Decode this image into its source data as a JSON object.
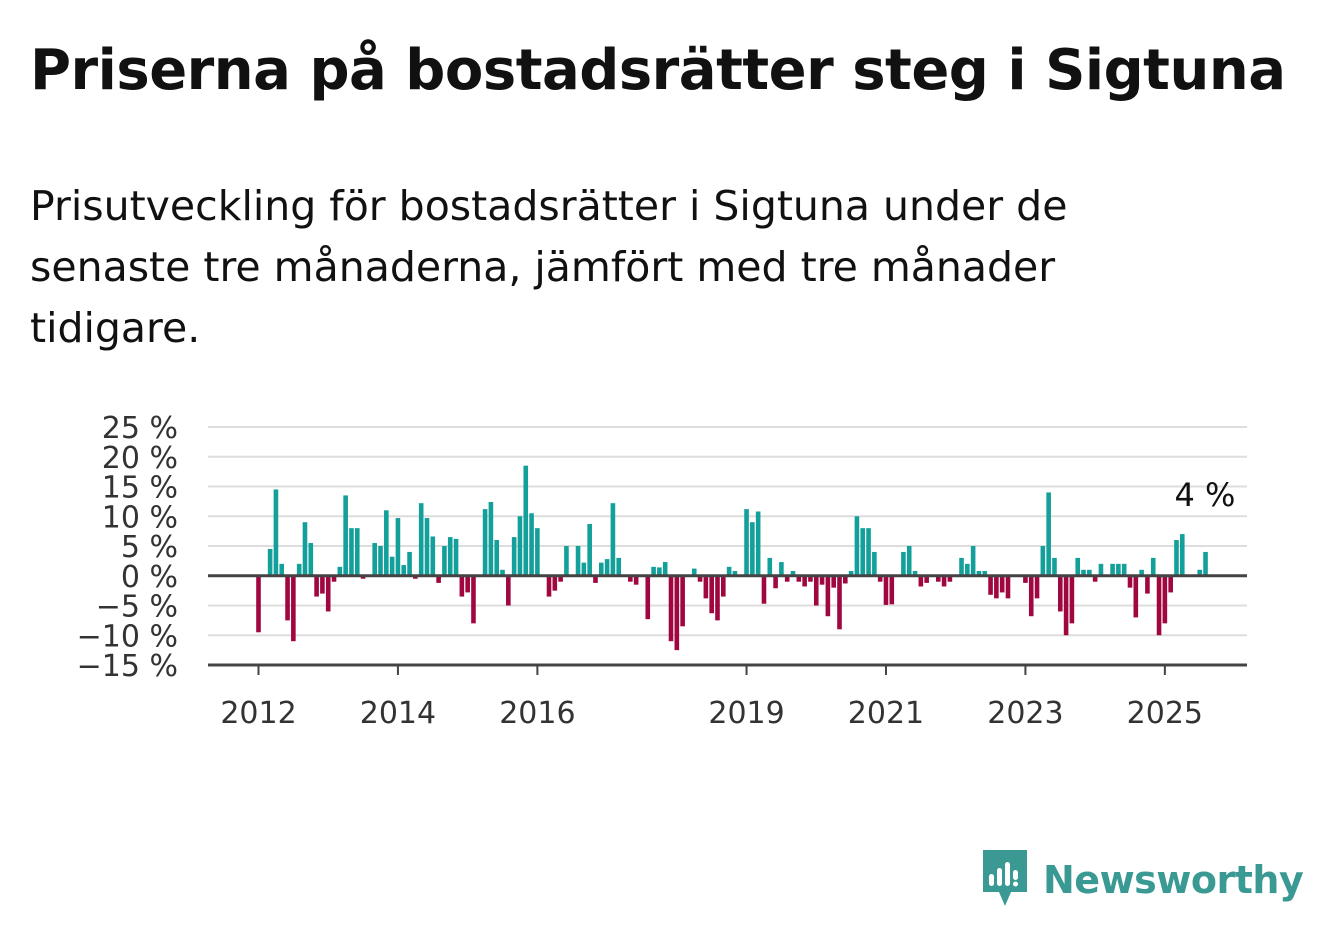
{
  "title": "Priserna på bostadsrätter steg i Sigtuna",
  "subtitle": "Prisutveckling för bostadsrätter i Sigtuna under de senaste tre månaderna, jämfört med tre månader tidigare.",
  "brand": {
    "name": "Newsworthy",
    "icon": "newsworthy-logo-icon",
    "color": "#3a9a93"
  },
  "colors": {
    "positive": "#13a09a",
    "negative": "#a0063f",
    "grid": "#dddddd",
    "axis": "#444444"
  },
  "chart_data": {
    "type": "bar",
    "title": "",
    "xlabel": "",
    "ylabel": "",
    "ylim": [
      -15,
      25
    ],
    "y_ticks": [
      25,
      20,
      15,
      10,
      5,
      0,
      -5,
      -10,
      -15
    ],
    "y_tick_labels": [
      "25 %",
      "20 %",
      "15 %",
      "10 %",
      "5 %",
      "0 %",
      "−5 %",
      "−10 %",
      "−15 %"
    ],
    "x_ticks": [
      "2012",
      "2014",
      "2016",
      "2019",
      "2021",
      "2023",
      "2025"
    ],
    "start_month": "2012-01",
    "grid": true,
    "annotation": {
      "label": "4 %",
      "value": 4
    },
    "values": [
      -9.5,
      0,
      4.5,
      14.5,
      2,
      -7.5,
      -11,
      2,
      9,
      5.5,
      -3.5,
      -3,
      -6,
      -1,
      1.5,
      13.5,
      8,
      8,
      -0.5,
      0,
      5.5,
      5,
      11,
      3.2,
      9.7,
      1.8,
      4,
      -0.5,
      12.2,
      9.7,
      6.6,
      -1.2,
      5,
      6.5,
      6.2,
      -3.5,
      -2.8,
      -8,
      0,
      11.2,
      12.4,
      6,
      1,
      -5,
      6.5,
      10,
      18.5,
      10.5,
      8,
      0,
      -3.5,
      -2.5,
      -1,
      5,
      0,
      5,
      2.2,
      8.7,
      -1.2,
      2.2,
      2.8,
      12.2,
      3,
      0,
      -1,
      -1.5,
      0,
      -7.3,
      1.5,
      1.4,
      2.3,
      -11,
      -12.5,
      -8.5,
      0,
      1.2,
      -1,
      -3.8,
      -6.3,
      -7.5,
      -3.5,
      1.5,
      0.8,
      0,
      11.2,
      9,
      10.8,
      -4.7,
      3,
      -2.1,
      2.3,
      -1,
      0.8,
      -1,
      -1.8,
      -1,
      -5,
      -1.5,
      -6.8,
      -2,
      -9,
      -1.3,
      0.8,
      10,
      8,
      8,
      4,
      -1,
      -4.9,
      -4.8,
      0,
      4,
      5,
      0.8,
      -1.8,
      -1.2,
      0,
      -1,
      -1.8,
      -1,
      0,
      3,
      2,
      5,
      0.8,
      0.8,
      -3.2,
      -3.8,
      -2.8,
      -3.8,
      0,
      0,
      -1.2,
      -6.8,
      -3.8,
      5,
      14,
      3,
      -6,
      -10,
      -8,
      3,
      1,
      1,
      -1,
      2,
      0,
      2,
      2,
      2,
      -2,
      -7,
      1,
      -3,
      3,
      -10,
      -8,
      -2.8,
      6,
      7,
      0,
      0,
      1,
      4
    ]
  }
}
